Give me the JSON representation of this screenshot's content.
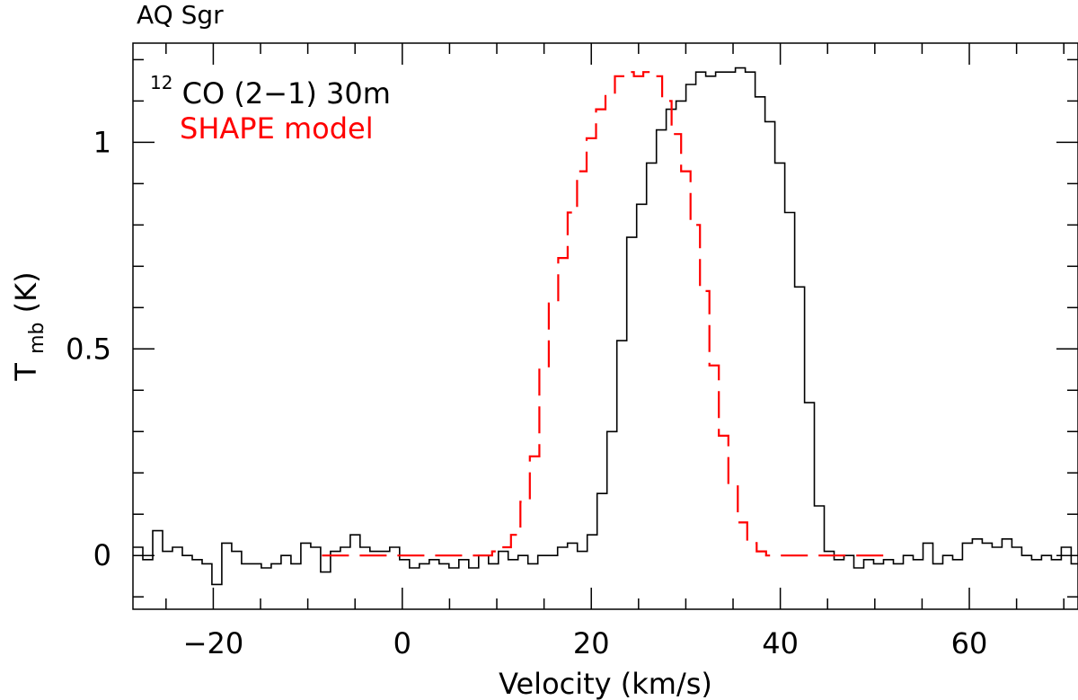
{
  "chart_data": {
    "type": "line",
    "title": "AQ Sgr",
    "xlabel": "Velocity (km/s)",
    "ylabel": "T",
    "ylabel_sub": "mb",
    "ylabel_unit": " (K)",
    "xlim": [
      -28.5,
      71.5
    ],
    "ylim": [
      -0.13,
      1.24
    ],
    "x_ticks_major": [
      -20,
      0,
      20,
      40,
      60
    ],
    "x_tick_labels": [
      "−20",
      "0",
      "20",
      "40",
      "60"
    ],
    "y_ticks_major": [
      0,
      0.5,
      1
    ],
    "y_tick_labels": [
      "0",
      "0.5",
      "1"
    ],
    "annotations": {
      "line_sup": "12",
      "line_label": "CO (2−1) 30m",
      "model_label": "SHAPE model"
    },
    "colors": {
      "observed": "#000000",
      "model": "#ff0000",
      "axis": "#000000"
    },
    "series": [
      {
        "name": "12CO (2-1) 30m",
        "style": "step",
        "x_start": -28.5,
        "x_step": 1.045,
        "values": [
          0.02,
          -0.01,
          0.06,
          0.01,
          0.02,
          0.0,
          -0.01,
          -0.02,
          -0.07,
          0.03,
          0.01,
          -0.02,
          -0.02,
          -0.03,
          -0.02,
          0.0,
          -0.02,
          0.03,
          0.02,
          -0.04,
          0.01,
          0.02,
          0.05,
          0.02,
          0.01,
          0.01,
          0.02,
          -0.01,
          -0.03,
          -0.02,
          -0.01,
          -0.02,
          -0.03,
          -0.01,
          -0.03,
          0.0,
          -0.02,
          0.01,
          -0.01,
          0.0,
          -0.02,
          0.0,
          0.0,
          0.02,
          0.03,
          0.01,
          0.05,
          0.15,
          0.3,
          0.52,
          0.77,
          0.85,
          0.95,
          1.03,
          1.08,
          1.1,
          1.14,
          1.17,
          1.16,
          1.17,
          1.17,
          1.18,
          1.17,
          1.11,
          1.05,
          0.95,
          0.83,
          0.65,
          0.37,
          0.12,
          0.01,
          -0.01,
          0.0,
          -0.03,
          -0.01,
          -0.02,
          -0.01,
          -0.02,
          0.0,
          -0.01,
          0.03,
          -0.02,
          0.0,
          -0.01,
          0.03,
          0.04,
          0.03,
          0.02,
          0.04,
          0.02,
          0.0,
          -0.01,
          0.0,
          -0.01,
          0.02,
          -0.02,
          0.01,
          0.0
        ]
      },
      {
        "name": "SHAPE model",
        "style": "dashed-step",
        "x_start": -8.5,
        "x_step": 1.0,
        "values": [
          0.0,
          0.0,
          0.0,
          0.0,
          0.0,
          0.0,
          0.0,
          0.0,
          0.0,
          0.0,
          0.0,
          0.0,
          0.0,
          0.0,
          0.0,
          0.0,
          0.0,
          0.0,
          0.01,
          0.02,
          0.05,
          0.13,
          0.24,
          0.45,
          0.61,
          0.72,
          0.83,
          0.93,
          1.01,
          1.08,
          1.12,
          1.16,
          1.17,
          1.16,
          1.17,
          1.16,
          1.1,
          1.02,
          0.93,
          0.8,
          0.64,
          0.46,
          0.29,
          0.17,
          0.08,
          0.03,
          0.01,
          0.0,
          0.0,
          0.0,
          0.0,
          0.0,
          0.0,
          0.0,
          0.0,
          0.0,
          0.0,
          0.0,
          0.0,
          0.0
        ]
      }
    ]
  }
}
